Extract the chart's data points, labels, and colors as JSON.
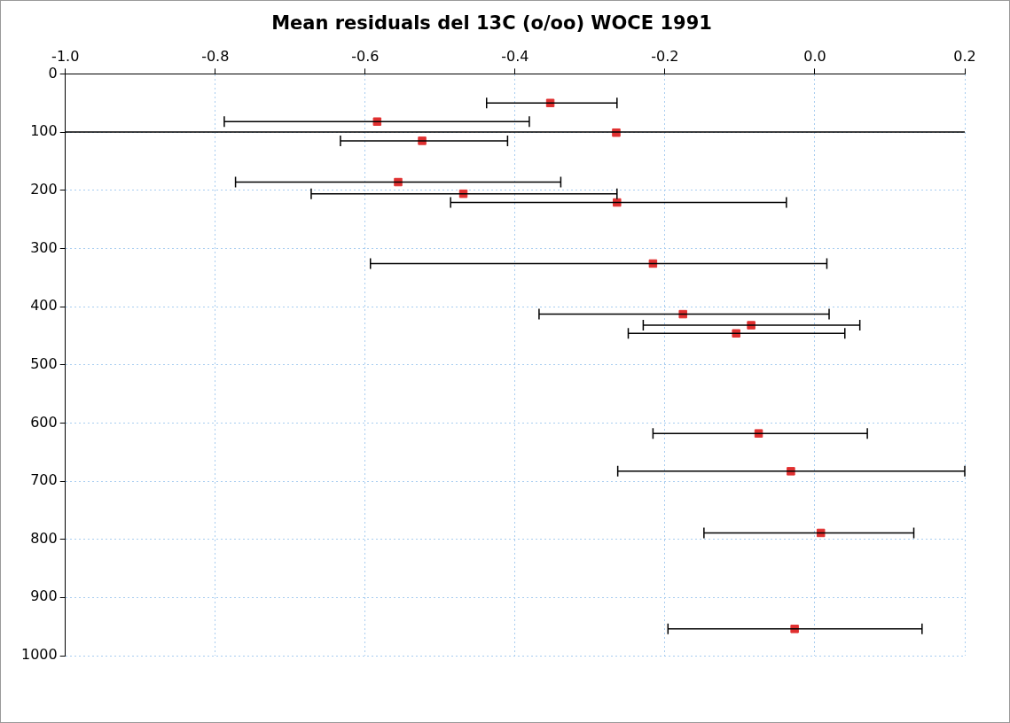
{
  "chart_data": {
    "type": "scatter",
    "title": "Mean residuals del 13C (o/oo) WOCE 1991",
    "x": [
      -0.353,
      -0.584,
      -0.265,
      -0.524,
      -0.556,
      -0.469,
      -0.264,
      -0.216,
      -0.176,
      -0.085,
      -0.105,
      -0.075,
      -0.032,
      0.008,
      -0.027
    ],
    "values": [
      50,
      82,
      101,
      115,
      186,
      206,
      221,
      326,
      413,
      432,
      446,
      618,
      683,
      789,
      954
    ],
    "xerrors": [
      [
        -0.438,
        -0.264
      ],
      [
        -0.788,
        -0.381
      ],
      null,
      [
        -0.633,
        -0.41
      ],
      [
        -0.773,
        -0.339
      ],
      [
        -0.672,
        -0.264
      ],
      [
        -0.486,
        -0.038
      ],
      [
        -0.593,
        0.016
      ],
      [
        -0.368,
        0.019
      ],
      [
        -0.229,
        0.06
      ],
      [
        -0.249,
        0.04
      ],
      [
        -0.216,
        0.07
      ],
      [
        -0.263,
        0.2
      ],
      [
        -0.148,
        0.132
      ],
      [
        -0.196,
        0.143
      ]
    ],
    "color": "#e03030",
    "marker": "square",
    "xlim": [
      -1.0,
      0.2
    ],
    "xticks": [
      {
        "value": -1.0,
        "label": "-1.0"
      },
      {
        "value": -0.8,
        "label": "-0.8"
      },
      {
        "value": -0.6,
        "label": "-0.6"
      },
      {
        "value": -0.4,
        "label": "-0.4"
      },
      {
        "value": -0.2,
        "label": "-0.2"
      },
      {
        "value": 0,
        "label": "0.0"
      },
      {
        "value": 0.2,
        "label": "0.2"
      }
    ],
    "ylim": [
      1000,
      0
    ],
    "yticks": [
      0,
      100,
      200,
      300,
      400,
      500,
      600,
      700,
      800,
      900,
      1000
    ],
    "ref_lines": [
      {
        "axis": "y",
        "value": 100,
        "color": "#000000",
        "line_style": "solid"
      }
    ],
    "grid": true,
    "legend": false
  }
}
